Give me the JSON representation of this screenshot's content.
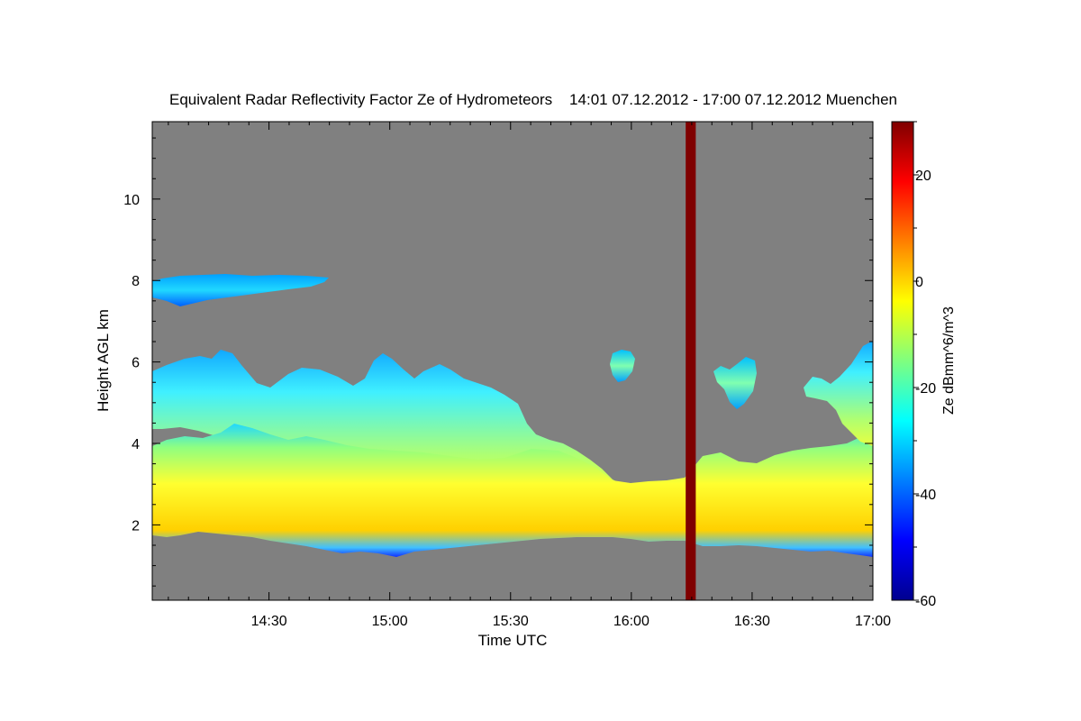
{
  "chart_data": {
    "type": "heatmap",
    "title": "Equivalent Radar Reflectivity Factor Ze of Hydrometeors    14:01 07.12.2012 - 17:00 07.12.2012 Muenchen",
    "xlabel": "Time UTC",
    "ylabel": "Height AGL km",
    "colorbar_label": "Ze dBmm^6/m^3",
    "x_unit": "minutes after 14:00 UTC",
    "xlim": [
      1,
      180
    ],
    "ylim": [
      0.15,
      11.9
    ],
    "clim": [
      -60,
      30
    ],
    "x_tick_labels": [
      {
        "t": 30,
        "label": "14:30"
      },
      {
        "t": 60,
        "label": "15:00"
      },
      {
        "t": 90,
        "label": "15:30"
      },
      {
        "t": 120,
        "label": "16:00"
      },
      {
        "t": 150,
        "label": "16:30"
      },
      {
        "t": 180,
        "label": "17:00"
      }
    ],
    "y_ticks": [
      2,
      4,
      6,
      8,
      10
    ],
    "colorbar_ticks": [
      -60,
      -40,
      -20,
      0,
      20
    ],
    "background_color": "#808080",
    "colormap": [
      "#00008f",
      "#0000ff",
      "#007fff",
      "#00ffff",
      "#7fff7f",
      "#ffff00",
      "#ff7f00",
      "#ff0000",
      "#7f0000"
    ],
    "regions": [
      {
        "name": "lower cloud layer",
        "top_km": 3.6,
        "base_km": 1.7,
        "core_ze_dbz": -5,
        "max_ze_dbz": 5
      },
      {
        "name": "upper cloud layer",
        "top_km": 6.3,
        "base_km": 4.2,
        "core_ze_dbz": -20
      },
      {
        "name": "cirrus band",
        "top_km": 8.25,
        "base_km": 7.45,
        "core_ze_dbz": -30
      }
    ],
    "data_gap": {
      "start_min": 133.5,
      "end_min": 136.0,
      "ze_dbz": 30
    }
  }
}
